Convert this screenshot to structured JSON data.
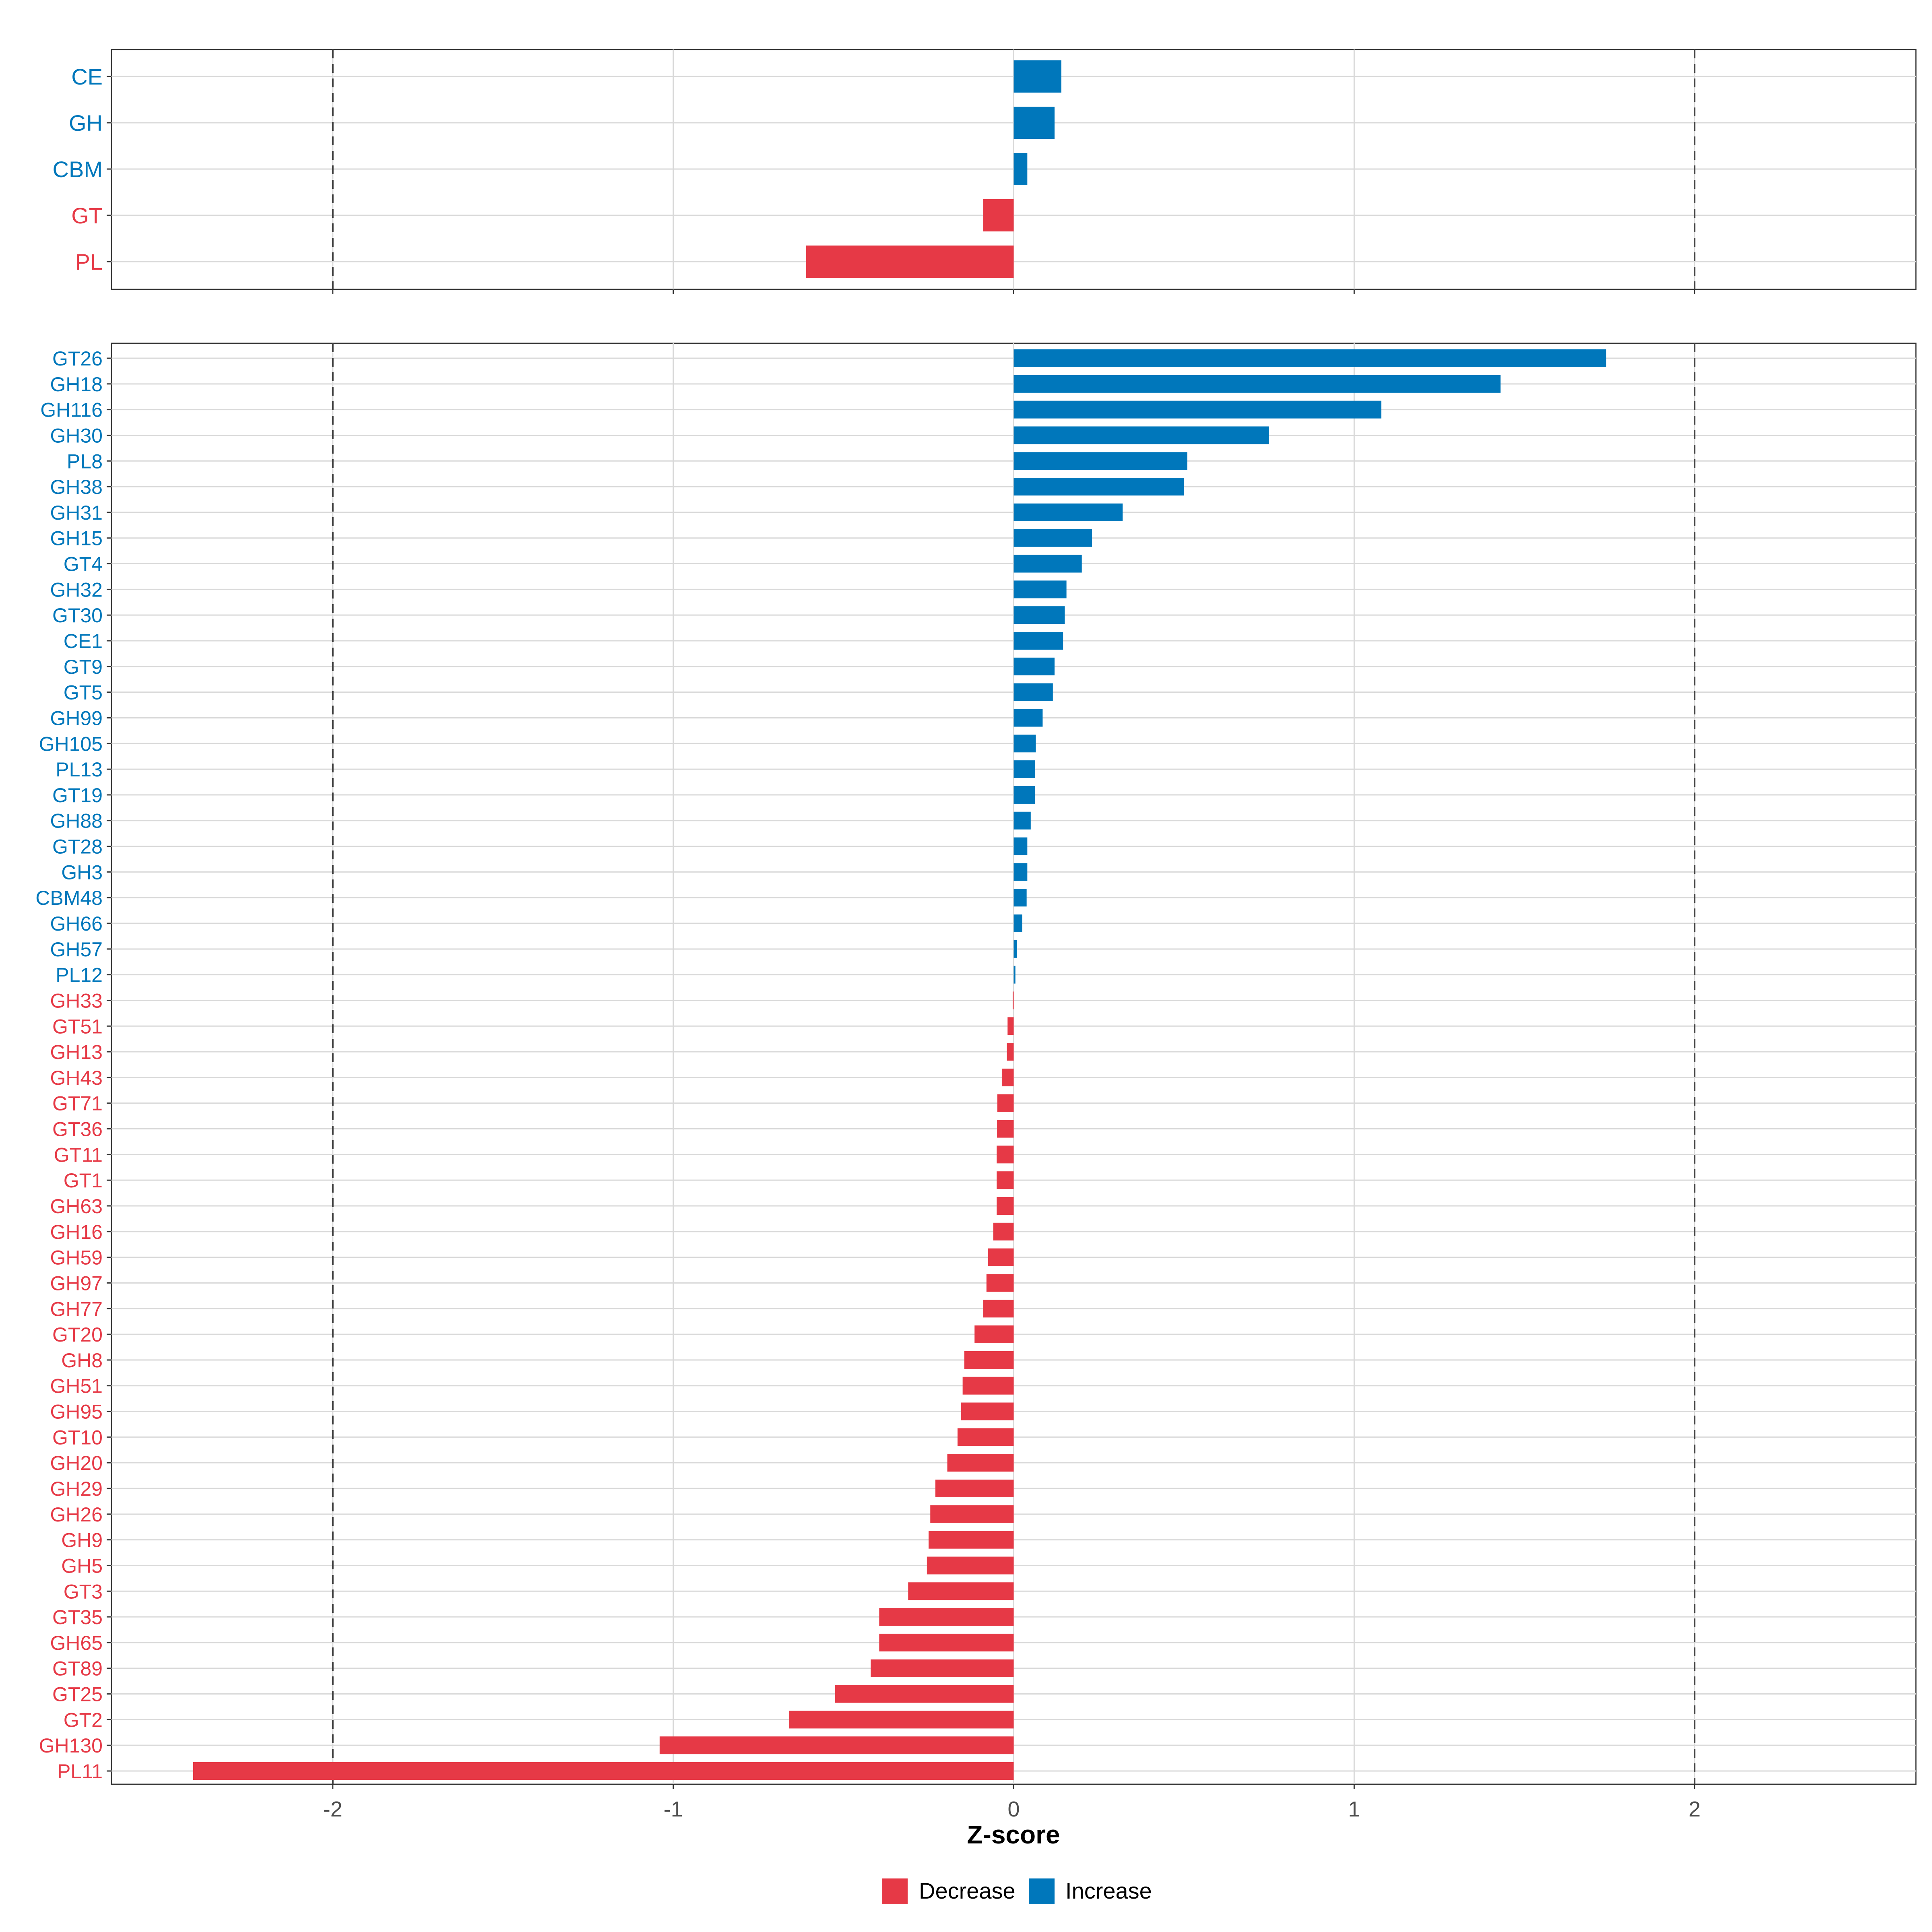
{
  "colors": {
    "increase": "#0077BB",
    "decrease": "#E63946"
  },
  "chart_data": [
    {
      "type": "bar",
      "orientation": "horizontal",
      "panel": "family",
      "categories": [
        "CE",
        "GH",
        "CBM",
        "GT",
        "PL"
      ],
      "values": [
        0.14,
        0.12,
        0.04,
        -0.09,
        -0.61
      ],
      "xlim": [
        -2.65,
        2.65
      ],
      "xticks": [
        -2,
        -1,
        0,
        1,
        2
      ],
      "reference_lines": [
        -2,
        2
      ],
      "grid": true
    },
    {
      "type": "bar",
      "orientation": "horizontal",
      "panel": "subfamily",
      "categories": [
        "GT26",
        "GH18",
        "GH116",
        "GH30",
        "PL8",
        "GH38",
        "GH31",
        "GH15",
        "GT4",
        "GH32",
        "GT30",
        "CE1",
        "GT9",
        "GT5",
        "GH99",
        "GH105",
        "PL13",
        "GT19",
        "GH88",
        "GT28",
        "GH3",
        "CBM48",
        "GH66",
        "GH57",
        "PL12",
        "GH33",
        "GT51",
        "GH13",
        "GH43",
        "GT71",
        "GT36",
        "GT11",
        "GT1",
        "GH63",
        "GH16",
        "GH59",
        "GH97",
        "GH77",
        "GT20",
        "GH8",
        "GH51",
        "GH95",
        "GT10",
        "GH20",
        "GH29",
        "GH26",
        "GH9",
        "GH5",
        "GT3",
        "GT35",
        "GH65",
        "GT89",
        "GT25",
        "GT2",
        "GH130",
        "PL11"
      ],
      "values": [
        1.74,
        1.43,
        1.08,
        0.75,
        0.51,
        0.5,
        0.32,
        0.23,
        0.2,
        0.155,
        0.15,
        0.145,
        0.12,
        0.115,
        0.085,
        0.065,
        0.063,
        0.062,
        0.05,
        0.04,
        0.04,
        0.038,
        0.025,
        0.01,
        0.005,
        -0.003,
        -0.018,
        -0.02,
        -0.035,
        -0.048,
        -0.049,
        -0.05,
        -0.05,
        -0.05,
        -0.06,
        -0.075,
        -0.08,
        -0.09,
        -0.115,
        -0.145,
        -0.15,
        -0.155,
        -0.165,
        -0.195,
        -0.23,
        -0.245,
        -0.25,
        -0.255,
        -0.31,
        -0.395,
        -0.395,
        -0.42,
        -0.525,
        -0.66,
        -1.04,
        -2.41
      ],
      "xlim": [
        -2.65,
        2.65
      ],
      "xticks": [
        -2,
        -1,
        0,
        1,
        2
      ],
      "xticklabels": [
        "-2",
        "-1",
        "0",
        "1",
        "2"
      ],
      "reference_lines": [
        -2,
        2
      ],
      "xlabel": "Z-score",
      "grid": true
    }
  ],
  "legend": {
    "position": "bottom",
    "items": [
      {
        "label": "Decrease",
        "color_key": "decrease"
      },
      {
        "label": "Increase",
        "color_key": "increase"
      }
    ]
  }
}
